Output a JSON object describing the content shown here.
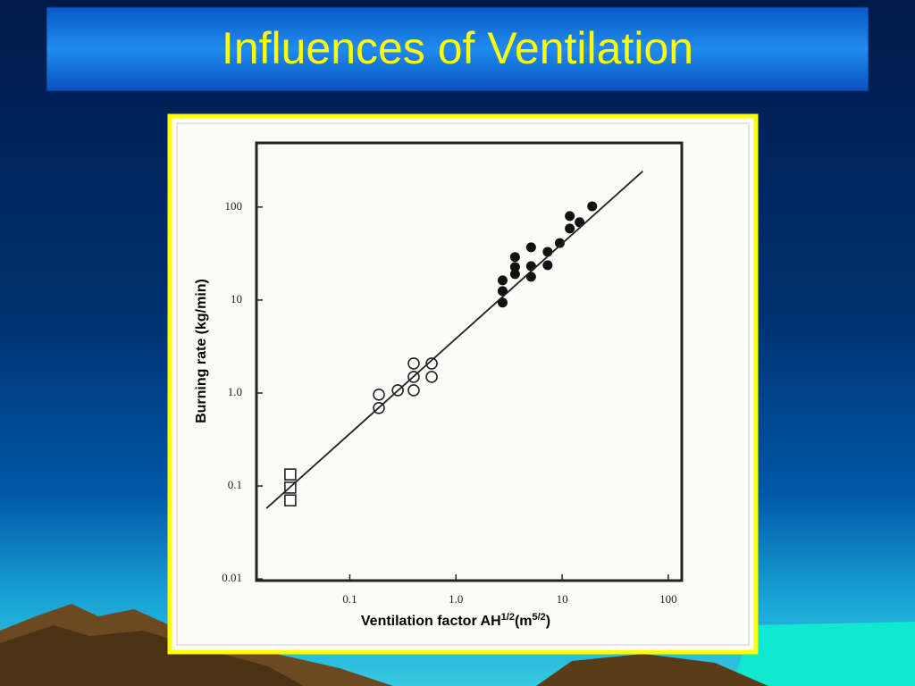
{
  "chart_data": {
    "type": "scatter",
    "title": "Influences of Ventilation",
    "x_label": [
      "Ventilation factor AH",
      "1/2",
      "(m",
      "5/2",
      ")"
    ],
    "y_label": "Burning rate (kg/min)",
    "xscale": "log",
    "yscale": "log",
    "xlim": [
      0.0132,
      134
    ],
    "ylim": [
      0.0096,
      490
    ],
    "xticks": [
      0.1,
      {
        "value": 1,
        "label": "1.0"
      },
      10,
      100
    ],
    "yticks": [
      0.01,
      0.1,
      {
        "value": 1,
        "label": "1.0"
      },
      10,
      100
    ],
    "series": [
      {
        "marker": "square",
        "color": "#222222",
        "x": [
          0.0275,
          0.0275,
          0.0275
        ],
        "values": [
          0.133,
          0.096,
          0.07
        ]
      },
      {
        "marker": "circle-open",
        "color": "#222222",
        "x": [
          0.188,
          0.188,
          0.283,
          0.4,
          0.4,
          0.4,
          0.59,
          0.59
        ],
        "values": [
          0.96,
          0.69,
          1.07,
          1.07,
          1.49,
          2.08,
          2.08,
          1.49
        ]
      },
      {
        "marker": "circle-filled",
        "color": "#111111",
        "x": [
          2.75,
          2.75,
          2.75,
          3.6,
          3.6,
          3.6,
          5.1,
          5.1,
          5.1,
          7.3,
          7.3,
          9.5,
          11.8,
          11.8,
          14.6,
          19.2
        ],
        "values": [
          16.3,
          12.5,
          9.4,
          29,
          22.7,
          19,
          36.9,
          23.2,
          17.8,
          33,
          23.7,
          41,
          80,
          58.7,
          68.7,
          102
        ]
      },
      {
        "marker": "line",
        "color": "#222222",
        "x": [
          0.0164,
          57.5
        ],
        "values": [
          0.0575,
          243
        ]
      }
    ]
  }
}
